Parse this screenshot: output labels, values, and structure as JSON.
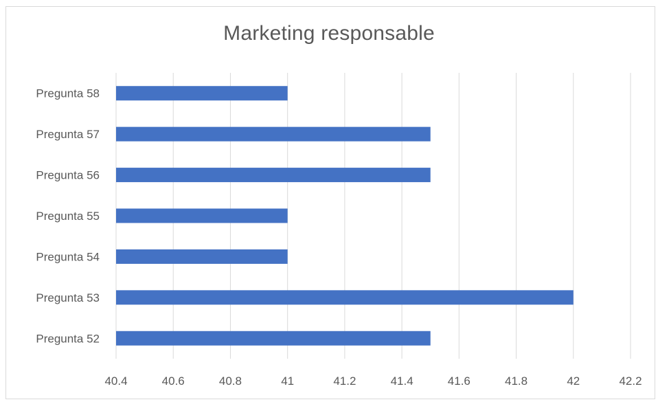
{
  "chart_data": {
    "type": "bar",
    "orientation": "horizontal",
    "title": "Marketing responsable",
    "xlabel": "",
    "ylabel": "",
    "categories": [
      "Pregunta 52",
      "Pregunta 53",
      "Pregunta 54",
      "Pregunta 55",
      "Pregunta 56",
      "Pregunta 57",
      "Pregunta 58"
    ],
    "values": [
      41.5,
      42,
      41,
      41,
      41.5,
      41.5,
      41
    ],
    "xlim": [
      40.4,
      42.2
    ],
    "xticks": [
      "40.4",
      "40.6",
      "40.8",
      "41",
      "41.2",
      "41.4",
      "41.6",
      "41.8",
      "42",
      "42.2"
    ],
    "grid": "vertical",
    "legend": "none",
    "bar_color": "#4472c4",
    "grid_color": "#d9d9d9",
    "text_color": "#595959"
  }
}
